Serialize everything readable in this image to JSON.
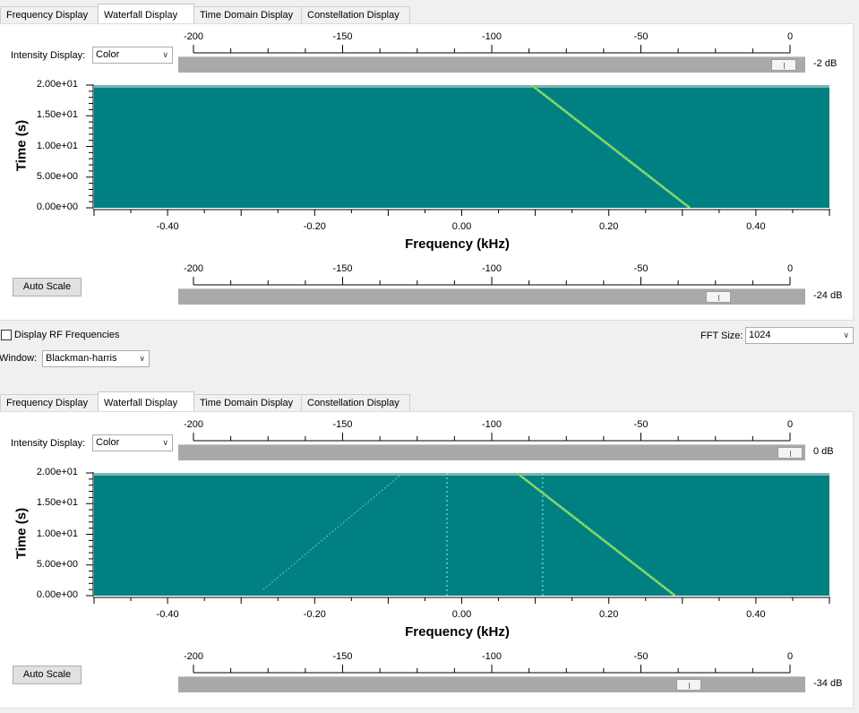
{
  "tabs": [
    "Frequency Display",
    "Waterfall Display",
    "Time Domain Display",
    "Constellation Display"
  ],
  "active_tab": 1,
  "scale_ticks": [
    "-200",
    "-150",
    "-100",
    "-50",
    "0"
  ],
  "displays": [
    {
      "intensity_label": "Intensity Display:",
      "intensity_value": "Color",
      "max_db_label": "-2 dB",
      "max_db": -2,
      "min_db_label": "-24 dB",
      "min_db": -24,
      "auto_scale_label": "Auto Scale",
      "chart_data": {
        "type": "heatmap",
        "xlabel": "Frequency (kHz)",
        "ylabel": "Time (s)",
        "xlim": [
          -0.5,
          0.5
        ],
        "ylim": [
          0,
          20
        ],
        "xticks": [
          "-0.40",
          "-0.20",
          "0.00",
          "0.20",
          "0.40"
        ],
        "yticks": [
          "2.00e+01",
          "1.50e+01",
          "1.00e+01",
          "5.00e+00",
          "0.00e+00"
        ],
        "background_color": "#008080",
        "trace_color": "#e8e000",
        "traces": [
          {
            "x": [
              0.095,
              0.31
            ],
            "y": [
              20,
              0
            ]
          }
        ]
      }
    },
    {
      "intensity_label": "Intensity Display:",
      "intensity_value": "Color",
      "max_db_label": "0 dB",
      "max_db": 0,
      "min_db_label": "-34 dB",
      "min_db": -34,
      "auto_scale_label": "Auto Scale",
      "chart_data": {
        "type": "heatmap",
        "xlabel": "Frequency (kHz)",
        "ylabel": "Time (s)",
        "xlim": [
          -0.5,
          0.5
        ],
        "ylim": [
          0,
          20
        ],
        "xticks": [
          "-0.40",
          "-0.20",
          "0.00",
          "0.20",
          "0.40"
        ],
        "yticks": [
          "2.00e+01",
          "1.50e+01",
          "1.00e+01",
          "5.00e+00",
          "0.00e+00"
        ],
        "background_color": "#008080",
        "trace_color": "#e8e000",
        "traces": [
          {
            "x": [
              0.075,
              0.29
            ],
            "y": [
              20,
              0
            ]
          }
        ],
        "faint_traces": [
          {
            "x": [
              -0.27,
              -0.08
            ],
            "y": [
              1,
              20
            ]
          }
        ],
        "vertical_lines": [
          -0.02,
          0.11
        ]
      }
    }
  ],
  "rf_checkbox_label": "Display RF Frequencies",
  "rf_checked": false,
  "fft_label": "FFT Size:",
  "fft_value": "1024",
  "window_label": "Window:",
  "window_value": "Blackman-harris"
}
